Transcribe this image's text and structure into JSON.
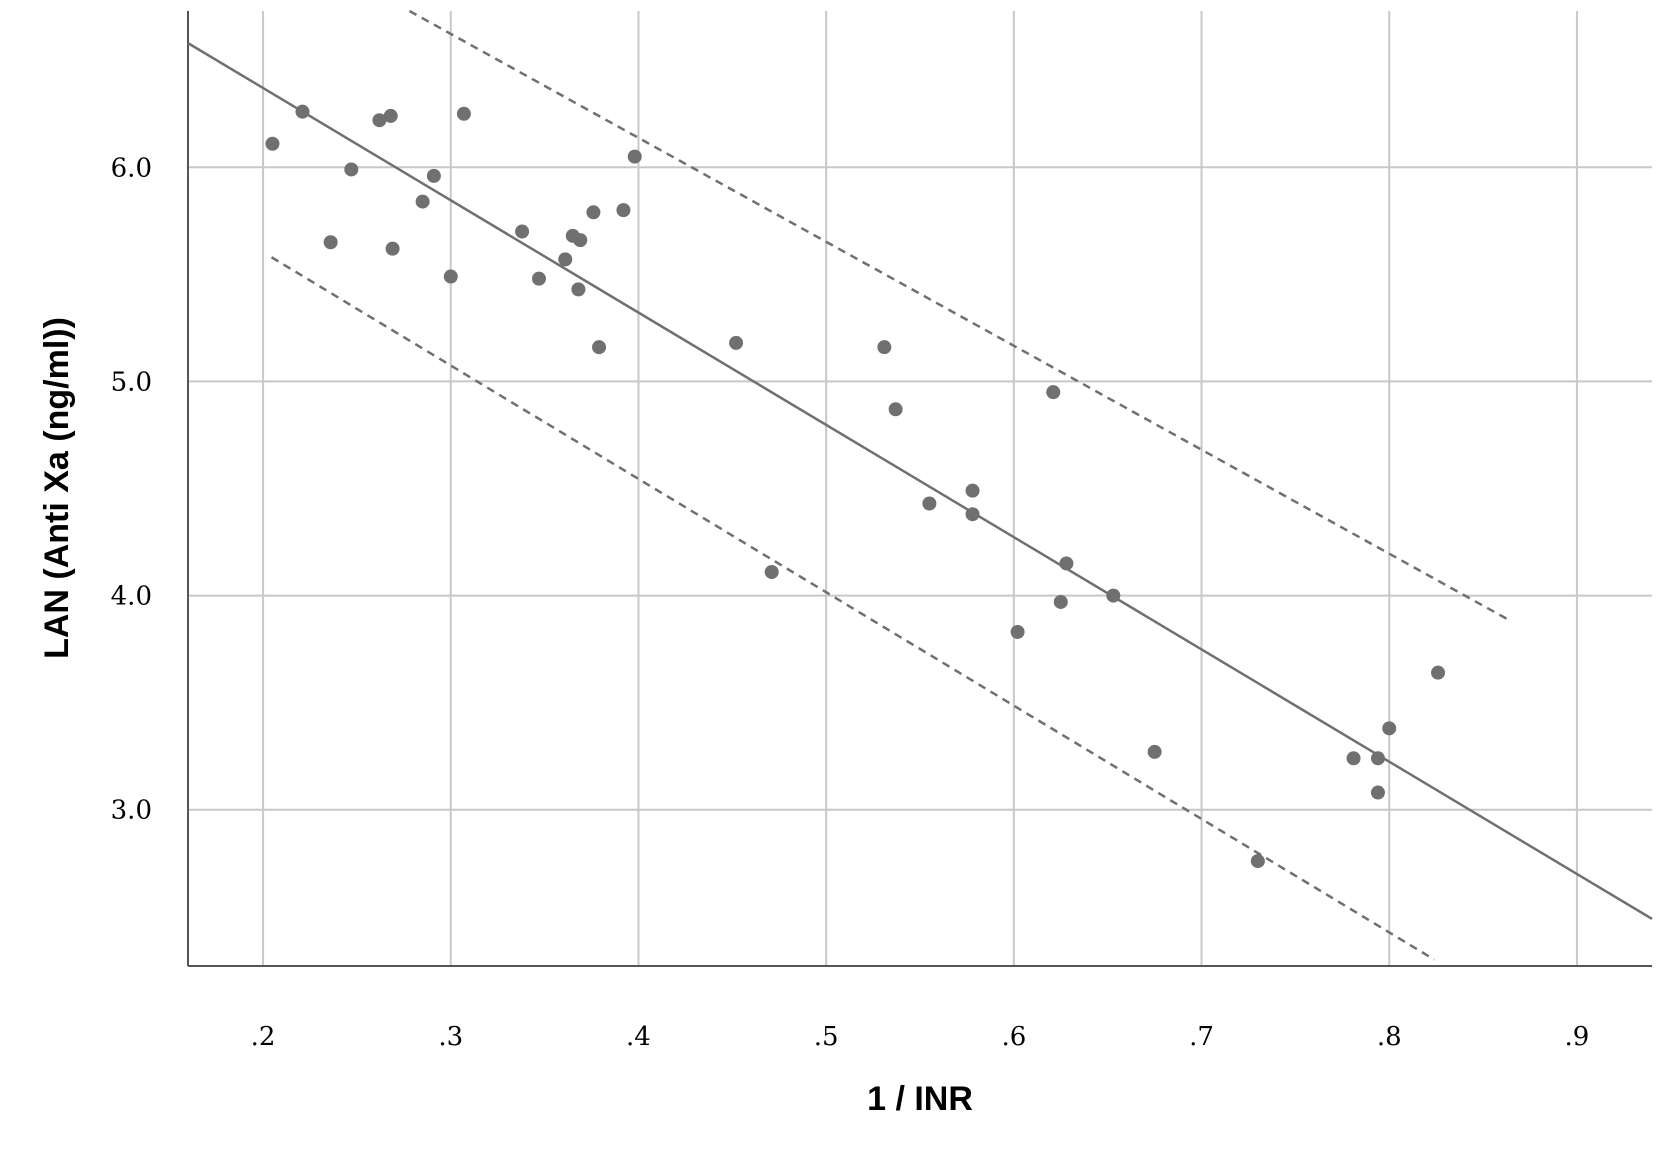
{
  "chart_data": {
    "type": "scatter",
    "x_label": "1 / INR",
    "y_label": "LAN (Anti Xa (ng/ml))",
    "xlim": [
      0.16,
      0.94
    ],
    "ylim": [
      2.27,
      6.73
    ],
    "xticks": [
      {
        "value": 0.2,
        "label": ".2"
      },
      {
        "value": 0.3,
        "label": ".3"
      },
      {
        "value": 0.4,
        "label": ".4"
      },
      {
        "value": 0.5,
        "label": ".5"
      },
      {
        "value": 0.6,
        "label": ".6"
      },
      {
        "value": 0.7,
        "label": ".7"
      },
      {
        "value": 0.8,
        "label": ".8"
      },
      {
        "value": 0.9,
        "label": ".9"
      }
    ],
    "yticks": [
      {
        "value": 3,
        "label": "3.0"
      },
      {
        "value": 4,
        "label": "4.0"
      },
      {
        "value": 5,
        "label": "5.0"
      },
      {
        "value": 6,
        "label": "6.0"
      }
    ],
    "grid": true,
    "color": "#707070",
    "x": [
      0.205,
      0.221,
      0.247,
      0.236,
      0.262,
      0.268,
      0.269,
      0.285,
      0.291,
      0.3,
      0.307,
      0.338,
      0.347,
      0.361,
      0.365,
      0.369,
      0.368,
      0.376,
      0.379,
      0.392,
      0.398,
      0.452,
      0.471,
      0.531,
      0.537,
      0.555,
      0.578,
      0.578,
      0.602,
      0.621,
      0.625,
      0.628,
      0.653,
      0.675,
      0.73,
      0.781,
      0.794,
      0.794,
      0.8,
      0.826
    ],
    "values": [
      6.11,
      6.26,
      5.99,
      5.65,
      6.22,
      6.24,
      5.62,
      5.84,
      5.96,
      5.49,
      6.25,
      5.7,
      5.48,
      5.57,
      5.68,
      5.66,
      5.43,
      5.79,
      5.16,
      5.8,
      6.05,
      5.18,
      4.11,
      5.16,
      4.87,
      4.43,
      4.49,
      4.38,
      3.83,
      4.95,
      3.97,
      4.15,
      4.0,
      3.27,
      2.76,
      3.24,
      3.24,
      3.08,
      3.38,
      3.64
    ],
    "lines": [
      {
        "type": "line",
        "color": "#707070",
        "dashed": false,
        "x": [
          0.16,
          0.94
        ],
        "values": [
          6.58,
          2.49
        ]
      },
      {
        "type": "line",
        "color": "#707070",
        "dashed": true,
        "x": [
          0.278,
          0.865
        ],
        "values": [
          6.73,
          3.88
        ]
      },
      {
        "type": "line",
        "color": "#707070",
        "dashed": true,
        "x": [
          0.2045,
          0.824
        ],
        "values": [
          5.58,
          2.3
        ]
      }
    ]
  }
}
